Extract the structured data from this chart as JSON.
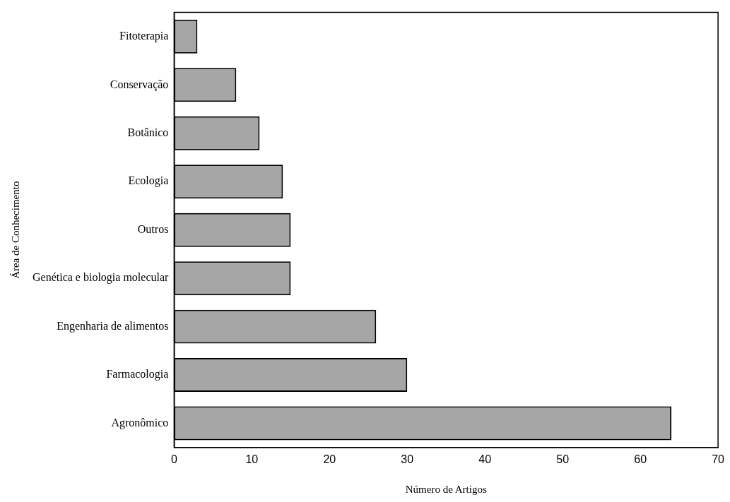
{
  "chart_data": {
    "type": "bar",
    "orientation": "horizontal",
    "categories": [
      "Fitoterapia",
      "Conservação",
      "Botânico",
      "Ecologia",
      "Outros",
      "Genética e biologia molecular",
      "Engenharia de alimentos",
      "Farmacologia",
      "Agronômico"
    ],
    "values": [
      3,
      8,
      11,
      14,
      15,
      15,
      26,
      30,
      64
    ],
    "color": "#a6a6a6",
    "xlabel": "Número de Artigos",
    "ylabel": "Área de Conhecimento",
    "xlim": [
      0,
      70
    ],
    "xticks": [
      0,
      10,
      20,
      30,
      40,
      50,
      60,
      70
    ]
  }
}
